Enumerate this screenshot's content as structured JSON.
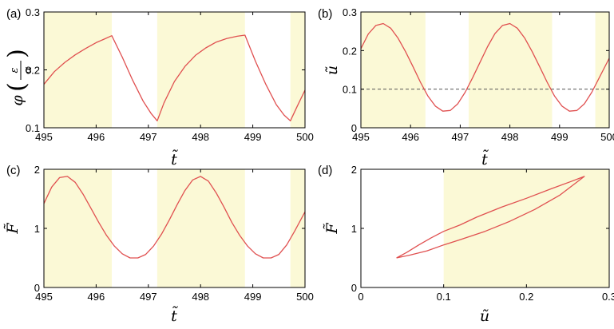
{
  "colors": {
    "curve": "#e05050",
    "shade": "#fbf9d6",
    "dashed": "#555555",
    "axis": "#000000"
  },
  "chart_data": [
    {
      "id": "a",
      "panel_label": "(a)",
      "type": "line",
      "xlabel": "t̃",
      "ylabel": "φ",
      "ylabel_fraction": {
        "numerator": "ε",
        "denominator": "α"
      },
      "xlim": [
        495,
        500
      ],
      "ylim": [
        0.1,
        0.3
      ],
      "xticks": [
        "495",
        "496",
        "497",
        "498",
        "499",
        "500"
      ],
      "yticks": [
        "0.1",
        "0.2",
        "0.3"
      ],
      "shaded_x_ranges": [
        [
          495,
          496.3
        ],
        [
          497.17,
          498.85
        ],
        [
          499.72,
          500
        ]
      ],
      "series": [
        {
          "x": [
            495,
            495.2,
            495.4,
            495.6,
            495.8,
            496.0,
            496.15,
            496.3,
            496.5,
            496.7,
            496.9,
            497.05,
            497.17,
            497.3,
            497.5,
            497.7,
            497.9,
            498.1,
            498.3,
            498.5,
            498.7,
            498.85,
            499.05,
            499.25,
            499.45,
            499.6,
            499.72,
            499.85,
            500
          ],
          "y": [
            0.175,
            0.197,
            0.213,
            0.226,
            0.237,
            0.247,
            0.253,
            0.259,
            0.222,
            0.182,
            0.146,
            0.125,
            0.112,
            0.143,
            0.18,
            0.206,
            0.225,
            0.238,
            0.248,
            0.254,
            0.258,
            0.26,
            0.215,
            0.175,
            0.14,
            0.122,
            0.112,
            0.137,
            0.165
          ]
        }
      ]
    },
    {
      "id": "b",
      "panel_label": "(b)",
      "type": "line",
      "xlabel": "t̃",
      "ylabel": "ũ",
      "xlim": [
        495,
        500
      ],
      "ylim": [
        0,
        0.3
      ],
      "xticks": [
        "495",
        "496",
        "497",
        "498",
        "499",
        "500"
      ],
      "yticks": [
        "0",
        "0.1",
        "0.2",
        "0.3"
      ],
      "shaded_x_ranges": [
        [
          495,
          496.3
        ],
        [
          497.17,
          498.85
        ],
        [
          499.72,
          500
        ]
      ],
      "hline": 0.1,
      "series": [
        {
          "x": [
            495,
            495.15,
            495.3,
            495.45,
            495.6,
            495.75,
            495.9,
            496.05,
            496.2,
            496.35,
            496.5,
            496.65,
            496.8,
            496.95,
            497.1,
            497.25,
            497.4,
            497.55,
            497.7,
            497.85,
            498.0,
            498.15,
            498.3,
            498.45,
            498.6,
            498.75,
            498.9,
            499.05,
            499.2,
            499.35,
            499.5,
            499.65,
            499.8,
            500
          ],
          "y": [
            0.205,
            0.243,
            0.265,
            0.27,
            0.258,
            0.232,
            0.197,
            0.158,
            0.118,
            0.082,
            0.056,
            0.043,
            0.045,
            0.062,
            0.092,
            0.13,
            0.17,
            0.21,
            0.244,
            0.265,
            0.27,
            0.258,
            0.232,
            0.197,
            0.158,
            0.118,
            0.082,
            0.056,
            0.043,
            0.045,
            0.062,
            0.092,
            0.13,
            0.18
          ]
        }
      ]
    },
    {
      "id": "c",
      "panel_label": "(c)",
      "type": "line",
      "xlabel": "t̃",
      "ylabel": "F̃",
      "xlim": [
        495,
        500
      ],
      "ylim": [
        0,
        2
      ],
      "xticks": [
        "495",
        "496",
        "497",
        "498",
        "499",
        "500"
      ],
      "yticks": [
        "0",
        "1",
        "2"
      ],
      "shaded_x_ranges": [
        [
          495,
          496.3
        ],
        [
          497.17,
          498.85
        ],
        [
          499.72,
          500
        ]
      ],
      "series": [
        {
          "x": [
            495,
            495.15,
            495.3,
            495.45,
            495.6,
            495.75,
            495.9,
            496.05,
            496.2,
            496.35,
            496.5,
            496.65,
            496.8,
            496.95,
            497.1,
            497.25,
            497.4,
            497.55,
            497.7,
            497.85,
            498.0,
            498.15,
            498.3,
            498.45,
            498.6,
            498.75,
            498.9,
            499.05,
            499.2,
            499.35,
            499.5,
            499.65,
            499.8,
            500
          ],
          "y": [
            1.42,
            1.7,
            1.86,
            1.88,
            1.78,
            1.58,
            1.34,
            1.1,
            0.88,
            0.7,
            0.57,
            0.5,
            0.5,
            0.56,
            0.7,
            0.9,
            1.14,
            1.4,
            1.64,
            1.82,
            1.88,
            1.8,
            1.6,
            1.36,
            1.1,
            0.88,
            0.7,
            0.57,
            0.5,
            0.5,
            0.56,
            0.72,
            0.95,
            1.28
          ]
        }
      ]
    },
    {
      "id": "d",
      "panel_label": "(d)",
      "type": "line",
      "xlabel": "ũ",
      "ylabel": "F̃",
      "xlim": [
        0,
        0.3
      ],
      "ylim": [
        0,
        2
      ],
      "xticks": [
        "0",
        "0.1",
        "0.2",
        "0.3"
      ],
      "yticks": [
        "0",
        "1",
        "2"
      ],
      "shaded_x_ranges": [
        [
          0.1,
          0.3
        ]
      ],
      "series": [
        {
          "x": [
            0.043,
            0.06,
            0.08,
            0.1,
            0.12,
            0.15,
            0.18,
            0.21,
            0.24,
            0.27,
            0.255,
            0.23,
            0.2,
            0.17,
            0.14,
            0.12,
            0.1,
            0.085,
            0.07,
            0.055,
            0.043
          ],
          "y": [
            0.5,
            0.55,
            0.62,
            0.72,
            0.81,
            0.95,
            1.12,
            1.32,
            1.56,
            1.88,
            1.8,
            1.67,
            1.51,
            1.36,
            1.19,
            1.06,
            0.95,
            0.84,
            0.72,
            0.59,
            0.5
          ]
        }
      ]
    }
  ]
}
